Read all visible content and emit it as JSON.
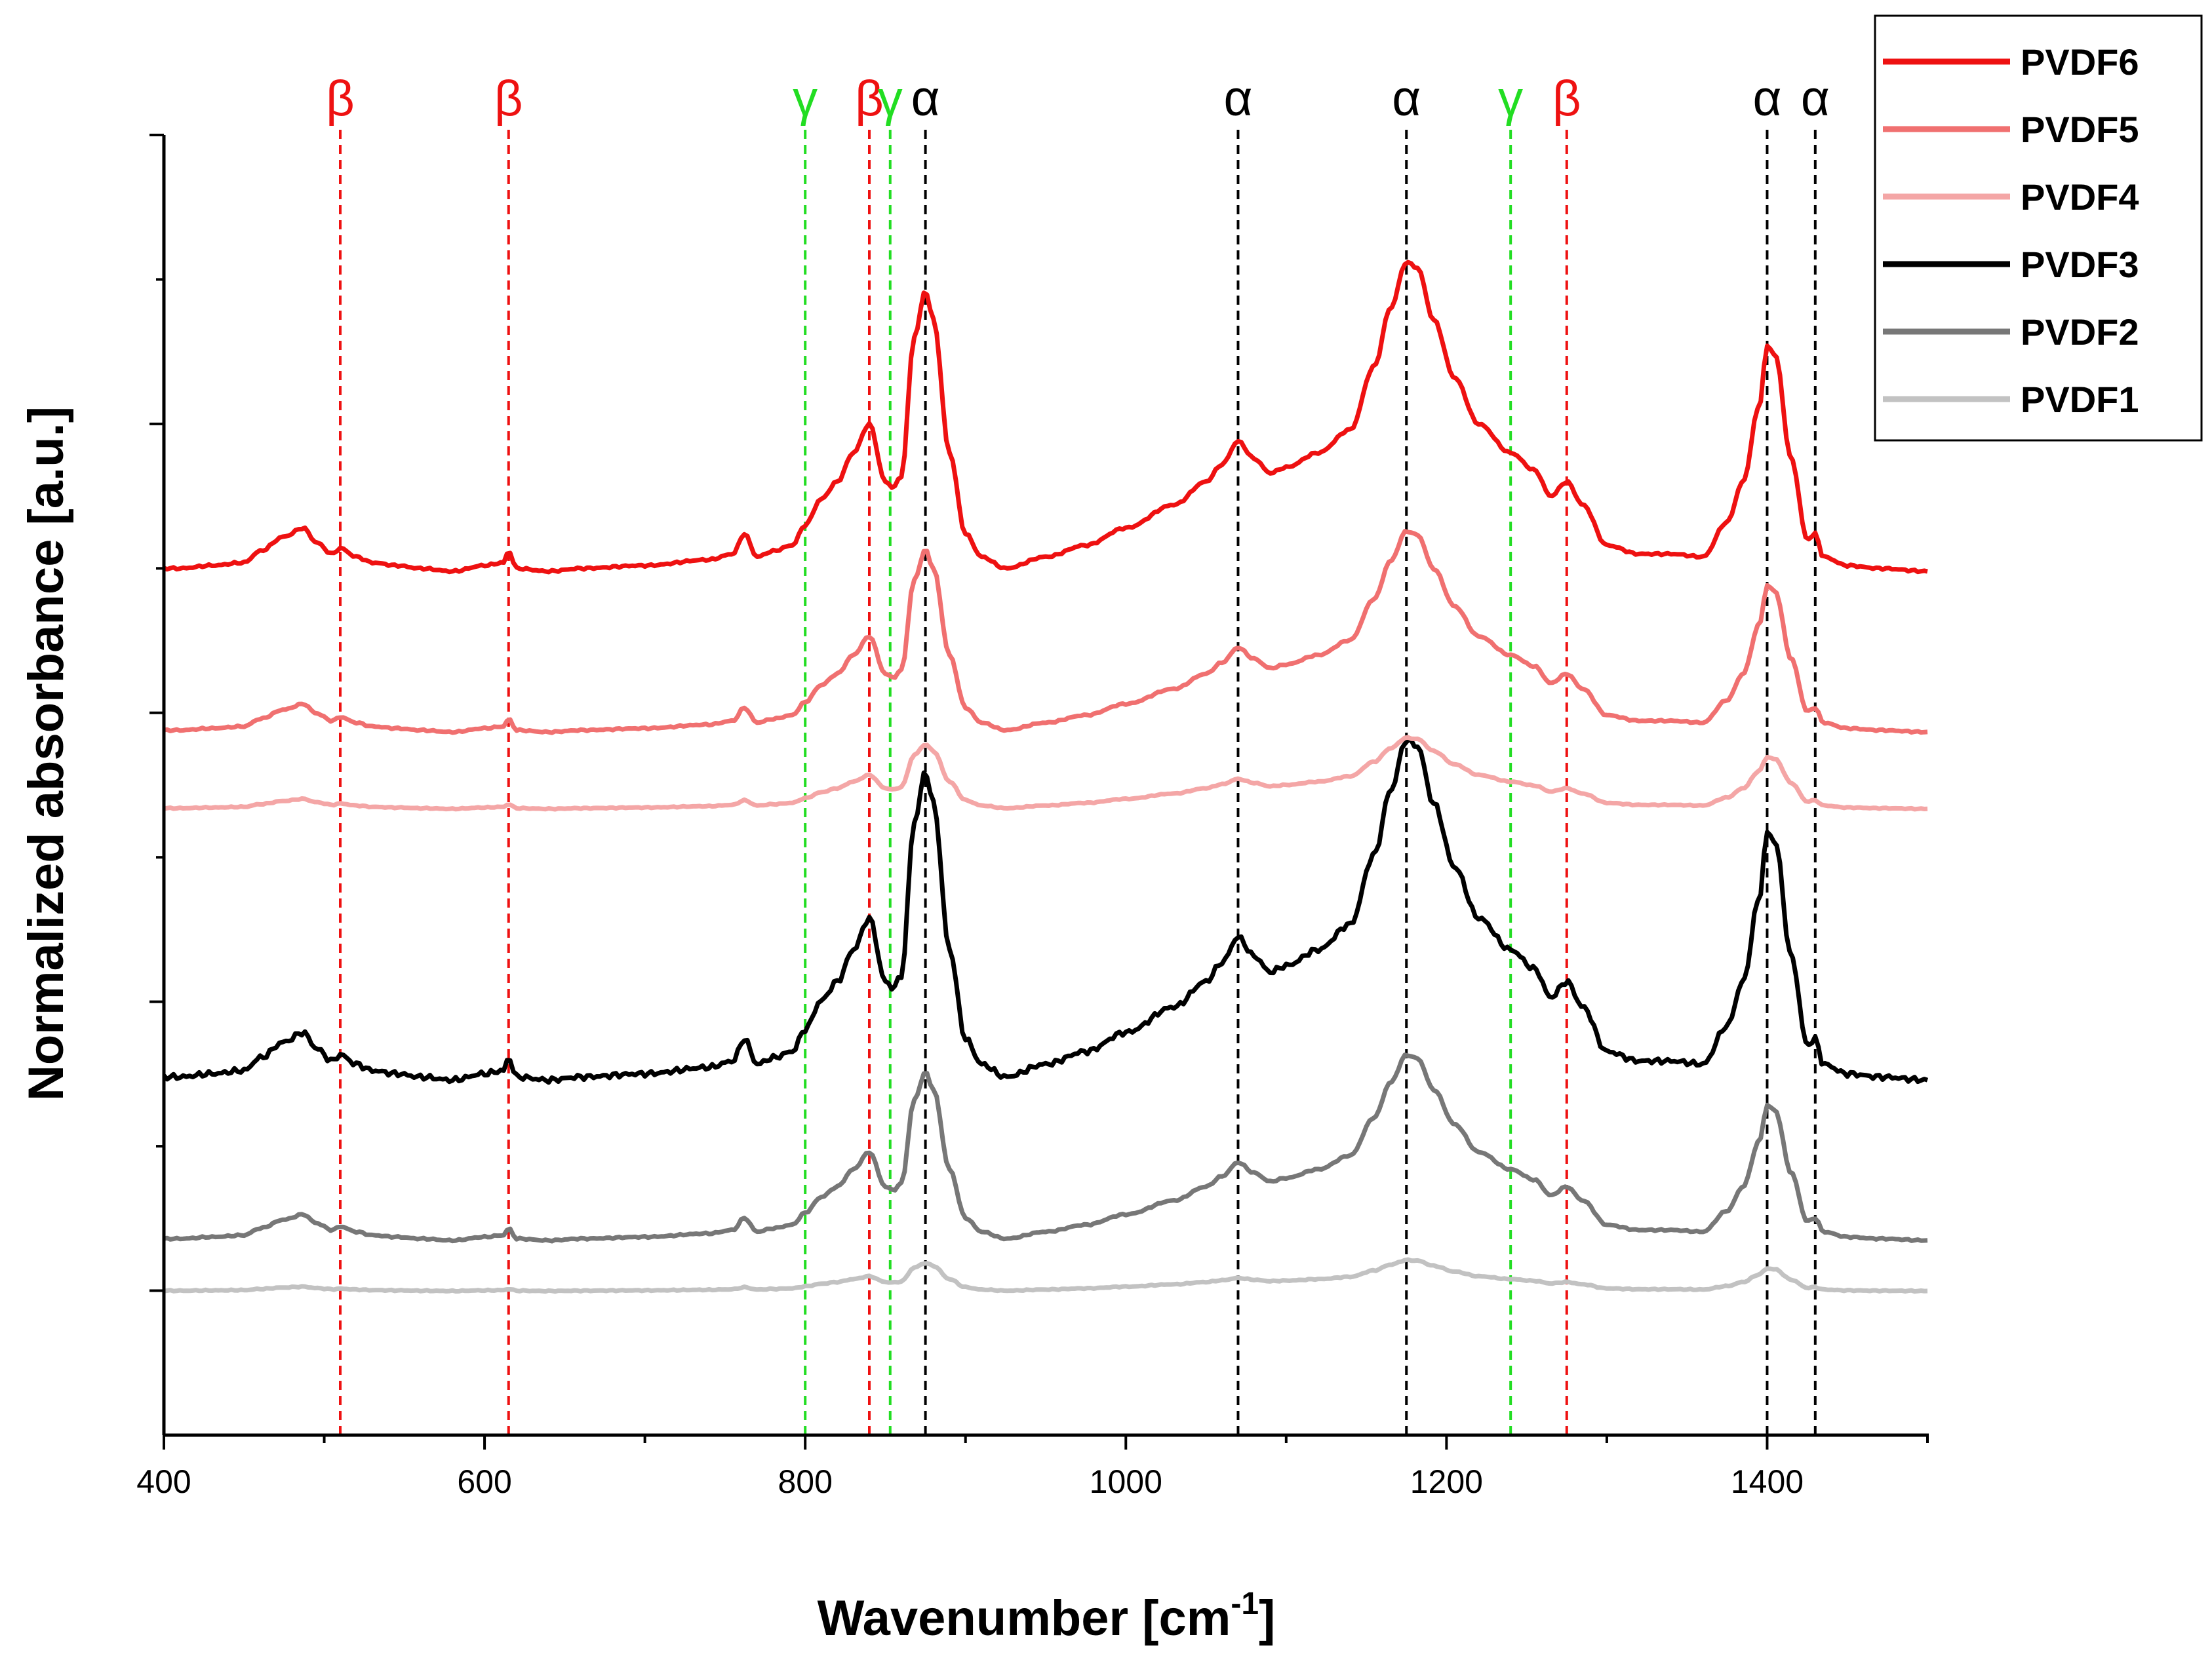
{
  "chart_data": {
    "type": "line",
    "title": "",
    "xlabel": "Wavenumber [cm",
    "xlabel_sup": "-1",
    "xlabel_end": "]",
    "ylabel": "Normalized absorbance [a.u.]",
    "xlim": [
      400,
      1500
    ],
    "ylim": [
      -0.5,
      4.0
    ],
    "x_ticks": [
      400,
      600,
      800,
      1000,
      1200,
      1400
    ],
    "x_tick_labels": [
      "400",
      "600",
      "800",
      "1000",
      "1200",
      "1400"
    ],
    "x_minor_step": 100,
    "y_ticks": [
      0,
      0.5,
      1,
      1.5,
      2,
      2.5,
      3,
      3.5,
      4
    ],
    "legend_position": "top-right",
    "legend": [
      {
        "name": "PVDF6",
        "color": "#ee1111"
      },
      {
        "name": "PVDF5",
        "color": "#f07070"
      },
      {
        "name": "PVDF4",
        "color": "#f4a6a6"
      },
      {
        "name": "PVDF3",
        "color": "#000000"
      },
      {
        "name": "PVDF2",
        "color": "#777777"
      },
      {
        "name": "PVDF1",
        "color": "#c2c2c2"
      }
    ],
    "phase_lines": [
      {
        "x": 510,
        "label": "β",
        "color": "#ee1111"
      },
      {
        "x": 615,
        "label": "β",
        "color": "#ee1111"
      },
      {
        "x": 800,
        "label": "γ",
        "color": "#22dd22"
      },
      {
        "x": 840,
        "label": "β",
        "color": "#ee1111"
      },
      {
        "x": 853,
        "label": "γ",
        "color": "#22dd22"
      },
      {
        "x": 875,
        "label": "α",
        "color": "#000000"
      },
      {
        "x": 1070,
        "label": "α",
        "color": "#000000"
      },
      {
        "x": 1175,
        "label": "α",
        "color": "#000000"
      },
      {
        "x": 1240,
        "label": "γ",
        "color": "#22dd22"
      },
      {
        "x": 1275,
        "label": "β",
        "color": "#ee1111"
      },
      {
        "x": 1400,
        "label": "α",
        "color": "#000000"
      },
      {
        "x": 1430,
        "label": "α",
        "color": "#000000"
      }
    ],
    "series": [
      {
        "name": "PVDF6",
        "color": "#ee1111",
        "baseline": 2.5,
        "scale": 1.0,
        "noise": 0.004
      },
      {
        "name": "PVDF5",
        "color": "#f07070",
        "baseline": 1.94,
        "scale": 0.65,
        "noise": 0.003
      },
      {
        "name": "PVDF4",
        "color": "#f4a6a6",
        "baseline": 1.67,
        "scale": 0.23,
        "noise": 0.002
      },
      {
        "name": "PVDF3",
        "color": "#000000",
        "baseline": 0.74,
        "scale": 1.1,
        "noise": 0.01
      },
      {
        "name": "PVDF2",
        "color": "#777777",
        "baseline": 0.18,
        "scale": 0.6,
        "noise": 0.003
      },
      {
        "name": "PVDF1",
        "color": "#c2c2c2",
        "baseline": 0.0,
        "scale": 0.1,
        "noise": 0.002
      }
    ],
    "reference_profile": {
      "x": [
        400,
        410,
        430,
        450,
        460,
        475,
        487,
        495,
        505,
        510,
        520,
        530,
        545,
        560,
        580,
        600,
        612,
        615,
        620,
        640,
        660,
        700,
        740,
        755,
        762,
        770,
        780,
        792,
        800,
        810,
        820,
        830,
        840,
        850,
        855,
        860,
        868,
        875,
        880,
        890,
        900,
        910,
        925,
        950,
        975,
        1000,
        1030,
        1050,
        1060,
        1070,
        1080,
        1090,
        1100,
        1120,
        1140,
        1155,
        1165,
        1175,
        1182,
        1192,
        1205,
        1220,
        1240,
        1255,
        1265,
        1275,
        1285,
        1300,
        1320,
        1340,
        1360,
        1375,
        1385,
        1395,
        1400,
        1405,
        1415,
        1425,
        1430,
        1435,
        1450,
        1470,
        1500
      ],
      "y": [
        0.0,
        0.0,
        0.01,
        0.02,
        0.06,
        0.11,
        0.14,
        0.09,
        0.05,
        0.07,
        0.04,
        0.02,
        0.01,
        0.0,
        -0.01,
        0.01,
        0.02,
        0.06,
        0.0,
        -0.01,
        0.0,
        0.01,
        0.03,
        0.05,
        0.12,
        0.04,
        0.06,
        0.08,
        0.15,
        0.24,
        0.3,
        0.4,
        0.5,
        0.3,
        0.28,
        0.32,
        0.8,
        0.96,
        0.86,
        0.4,
        0.12,
        0.04,
        0.0,
        0.04,
        0.08,
        0.14,
        0.22,
        0.3,
        0.36,
        0.44,
        0.38,
        0.33,
        0.35,
        0.4,
        0.48,
        0.7,
        0.9,
        1.06,
        1.04,
        0.86,
        0.66,
        0.5,
        0.4,
        0.34,
        0.25,
        0.3,
        0.22,
        0.08,
        0.05,
        0.05,
        0.04,
        0.16,
        0.3,
        0.56,
        0.77,
        0.74,
        0.38,
        0.1,
        0.12,
        0.04,
        0.01,
        0.0,
        -0.01
      ]
    }
  }
}
